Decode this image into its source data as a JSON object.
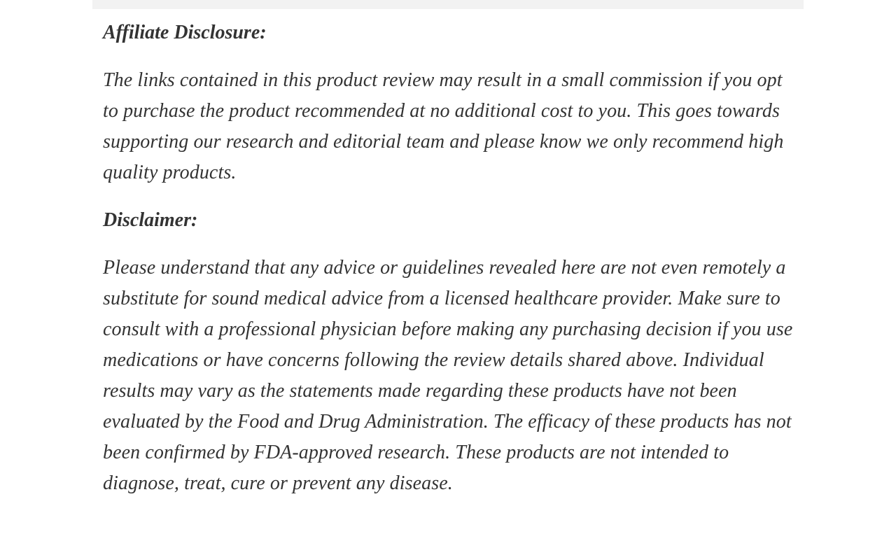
{
  "page": {
    "colors": {
      "text": "#333333",
      "background": "#ffffff",
      "top_strip": "#f2f2f2"
    }
  },
  "article": {
    "sections": [
      {
        "heading": "Affiliate Disclosure:",
        "body": "The links contained in this product review may result in a small commission if you opt to purchase the product recommended at no additional cost to you. This goes towards supporting our research and editorial team and please know we only recommend high quality products."
      },
      {
        "heading": "Disclaimer:",
        "body": "Please understand that any advice or guidelines revealed here are not even remotely a substitute for sound medical advice from a licensed healthcare provider. Make sure to consult with a professional physician before making any purchasing decision if you use medications or have concerns following the review details shared above. Individual results may vary as the statements made regarding these products have not been evaluated by the Food and Drug Administration. The efficacy of these products has not been confirmed by FDA-approved research. These products are not intended to diagnose, treat, cure or prevent any disease."
      }
    ]
  }
}
